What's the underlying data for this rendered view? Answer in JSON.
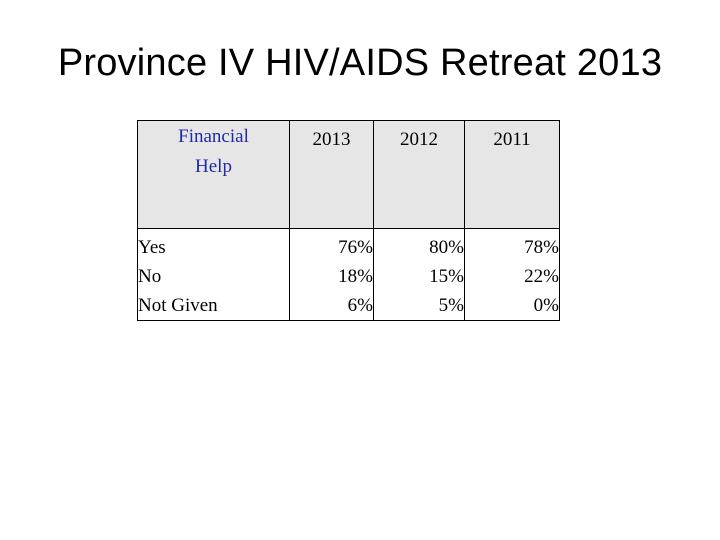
{
  "slide": {
    "title": "Province IV HIV/AIDS Retreat 2013"
  },
  "table": {
    "headers": [
      "Financial Help",
      "2013",
      "2012",
      "2011"
    ],
    "row_labels": [
      "Yes",
      "No",
      "Not Given"
    ],
    "columns": [
      {
        "year": "2013",
        "values": [
          "76%",
          "18%",
          "6%"
        ]
      },
      {
        "year": "2012",
        "values": [
          "80%",
          "15%",
          "5%"
        ]
      },
      {
        "year": "2011",
        "values": [
          "78%",
          "22%",
          "0%"
        ]
      }
    ],
    "colors": {
      "header_background": "#e6e6e6",
      "first_header_text": "#1f2aa8"
    }
  }
}
